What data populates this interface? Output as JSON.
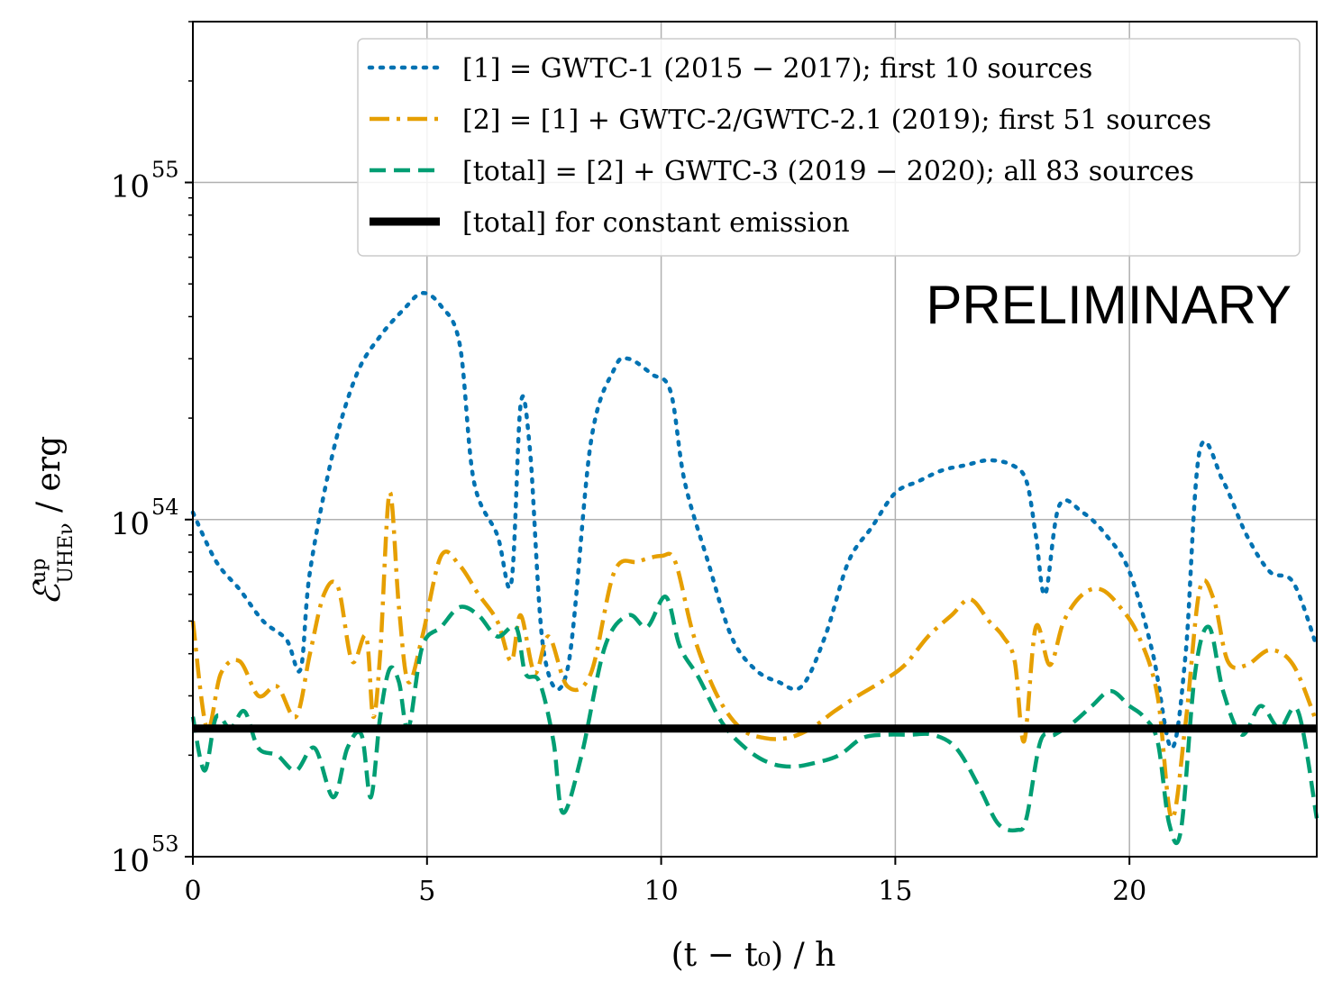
{
  "chart_data": {
    "type": "line",
    "ylabel": "𝓔ᵘᵖ_UHEν / erg",
    "ylabel_parts": {
      "symbol": "ℰ",
      "superscript": "up",
      "subscript": "UHEν",
      "unit": " / erg"
    },
    "xlabel": "(t − t₀) / h",
    "xlim": [
      0,
      24
    ],
    "ylim": [
      1e+53,
      3e+55
    ],
    "yscale": "log",
    "grid": true,
    "x_ticks": [
      0,
      5,
      10,
      15,
      20
    ],
    "x_tick_labels": [
      "0",
      "5",
      "10",
      "15",
      "20"
    ],
    "y_ticks": [
      1e+53,
      1e+54,
      1e+55
    ],
    "y_tick_labels": [
      {
        "base": "10",
        "exp": "53"
      },
      {
        "base": "10",
        "exp": "54"
      },
      {
        "base": "10",
        "exp": "55"
      }
    ],
    "annotation": "PRELIMINARY",
    "legend_position": "top-right",
    "series": [
      {
        "name": "[1] = GWTC-1 (2015 − 2017); first 10 sources",
        "color": "#0072b2",
        "style": "dotted",
        "x": [
          0,
          0.5,
          1,
          1.5,
          2,
          2.3,
          2.5,
          3,
          3.5,
          4,
          4.5,
          4.9,
          5.3,
          5.7,
          6,
          6.5,
          6.8,
          7,
          7.2,
          7.5,
          8,
          8.5,
          9,
          9.3,
          9.8,
          10.2,
          10.5,
          11,
          11.5,
          12,
          12.5,
          13,
          13.5,
          14,
          14.5,
          15,
          15.5,
          16,
          16.5,
          17,
          17.5,
          17.8,
          18,
          18.2,
          18.5,
          19,
          19.5,
          20,
          20.5,
          20.9,
          21.2,
          21.5,
          22,
          22.5,
          23,
          23.5,
          24
        ],
        "values": [
          1.05e+54,
          7.5e+53,
          6.2e+53,
          5e+53,
          4.4e+53,
          3.6e+53,
          7e+53,
          1.6e+54,
          2.7e+54,
          3.5e+54,
          4.2e+54,
          4.7e+54,
          4.3e+54,
          3.3e+54,
          1.3e+54,
          9e+53,
          6.5e+53,
          2.2e+54,
          1.6e+54,
          4e+53,
          3.6e+53,
          1.7e+54,
          2.8e+54,
          3e+54,
          2.7e+54,
          2.4e+54,
          1.3e+54,
          7.5e+53,
          4.5e+53,
          3.6e+53,
          3.3e+53,
          3.2e+53,
          4.5e+53,
          7.5e+53,
          9.5e+53,
          1.2e+54,
          1.3e+54,
          1.4e+54,
          1.45e+54,
          1.5e+54,
          1.45e+54,
          1.3e+54,
          9e+53,
          6e+53,
          1.1e+54,
          1.05e+54,
          9e+53,
          7e+53,
          4e+53,
          2.1e+53,
          4e+53,
          1.6e+54,
          1.3e+54,
          9e+53,
          7e+53,
          6.5e+53,
          4.2e+53
        ]
      },
      {
        "name": "[2] = [1] + GWTC-2/GWTC-2.1 (2019); first 51 sources",
        "color": "#e69f00",
        "style": "dashdot",
        "x": [
          0,
          0.3,
          0.6,
          1,
          1.4,
          1.8,
          2.2,
          2.5,
          2.8,
          3.1,
          3.4,
          3.7,
          3.85,
          4,
          4.2,
          4.4,
          4.6,
          4.9,
          5.3,
          5.7,
          6.1,
          6.5,
          6.8,
          7,
          7.3,
          7.6,
          8,
          8.5,
          9,
          9.5,
          10,
          10.3,
          10.7,
          11.2,
          11.7,
          12.2,
          12.7,
          13.2,
          13.7,
          14.2,
          14.7,
          15.2,
          15.7,
          16.2,
          16.6,
          17,
          17.3,
          17.55,
          17.75,
          18,
          18.3,
          18.6,
          19,
          19.4,
          19.8,
          20.2,
          20.6,
          20.9,
          21.2,
          21.5,
          21.8,
          22.1,
          22.5,
          23,
          23.5,
          24
        ],
        "values": [
          5e+53,
          2.4e+53,
          3.5e+53,
          3.8e+53,
          3e+53,
          3.2e+53,
          2.6e+53,
          4e+53,
          6e+53,
          6.3e+53,
          3.8e+53,
          4.5e+53,
          2.6e+53,
          4e+53,
          1.2e+54,
          5.5e+53,
          3.3e+53,
          4.5e+53,
          7.8e+53,
          7.3e+53,
          6e+53,
          5e+53,
          3.8e+53,
          5.2e+53,
          3.5e+53,
          4.5e+53,
          3.2e+53,
          3.5e+53,
          7e+53,
          7.5e+53,
          7.8e+53,
          7.5e+53,
          4.5e+53,
          3e+53,
          2.4e+53,
          2.25e+53,
          2.25e+53,
          2.4e+53,
          2.7e+53,
          3e+53,
          3.3e+53,
          3.7e+53,
          4.5e+53,
          5.2e+53,
          5.8e+53,
          5e+53,
          4.5e+53,
          3.8e+53,
          2.2e+53,
          4.8e+53,
          3.7e+53,
          5e+53,
          6e+53,
          6.2e+53,
          5.5e+53,
          4.5e+53,
          3e+53,
          1.3e+53,
          2.5e+53,
          6.2e+53,
          5.8e+53,
          3.8e+53,
          3.7e+53,
          4.1e+53,
          3.7e+53,
          2.5e+53
        ]
      },
      {
        "name": "[total] = [2] + GWTC-3 (2019 − 2020); all 83 sources",
        "color": "#009e73",
        "style": "dashed",
        "x": [
          0,
          0.25,
          0.5,
          0.8,
          1.1,
          1.4,
          1.8,
          2.2,
          2.6,
          3,
          3.3,
          3.6,
          3.8,
          4,
          4.2,
          4.4,
          4.6,
          4.9,
          5.3,
          5.7,
          6.1,
          6.5,
          6.9,
          7.1,
          7.4,
          7.7,
          7.9,
          8.3,
          8.8,
          9.3,
          9.7,
          10.1,
          10.4,
          10.8,
          11.3,
          11.8,
          12.3,
          12.8,
          13.3,
          13.8,
          14.3,
          14.8,
          15.3,
          15.8,
          16.3,
          16.8,
          17.2,
          17.6,
          17.8,
          18.1,
          18.4,
          18.8,
          19.2,
          19.6,
          20,
          20.3,
          20.6,
          20.85,
          21.1,
          21.4,
          21.7,
          22,
          22.4,
          22.8,
          23.2,
          23.6,
          24
        ],
        "values": [
          2.6e+53,
          1.8e+53,
          2.6e+53,
          2.4e+53,
          2.7e+53,
          2.1e+53,
          2e+53,
          1.8e+53,
          2.1e+53,
          1.5e+53,
          2.1e+53,
          2.3e+53,
          1.5e+53,
          2.6e+53,
          3.6e+53,
          3.3e+53,
          2.4e+53,
          4.2e+53,
          4.8e+53,
          5.5e+53,
          5.2e+53,
          4.5e+53,
          4.8e+53,
          3.5e+53,
          3.3e+53,
          2.2e+53,
          1.35e+53,
          2e+53,
          4.2e+53,
          5.2e+53,
          4.8e+53,
          5.9e+53,
          4.2e+53,
          3.4e+53,
          2.5e+53,
          2.1e+53,
          1.9e+53,
          1.85e+53,
          1.9e+53,
          2e+53,
          2.25e+53,
          2.3e+53,
          2.3e+53,
          2.3e+53,
          2.1e+53,
          1.6e+53,
          1.25e+53,
          1.2e+53,
          1.3e+53,
          2.2e+53,
          2.3e+53,
          2.5e+53,
          2.8e+53,
          3.1e+53,
          2.8e+53,
          2.6e+53,
          2.2e+53,
          1.25e+53,
          1.2e+53,
          3.5e+53,
          4.8e+53,
          3.1e+53,
          2.3e+53,
          2.8e+53,
          2.4e+53,
          2.7e+53,
          1.3e+53
        ]
      },
      {
        "name": "[total] for constant emission",
        "color": "#000000",
        "style": "solid",
        "x": [
          0,
          24
        ],
        "values": [
          2.4e+53,
          2.4e+53
        ]
      }
    ]
  }
}
